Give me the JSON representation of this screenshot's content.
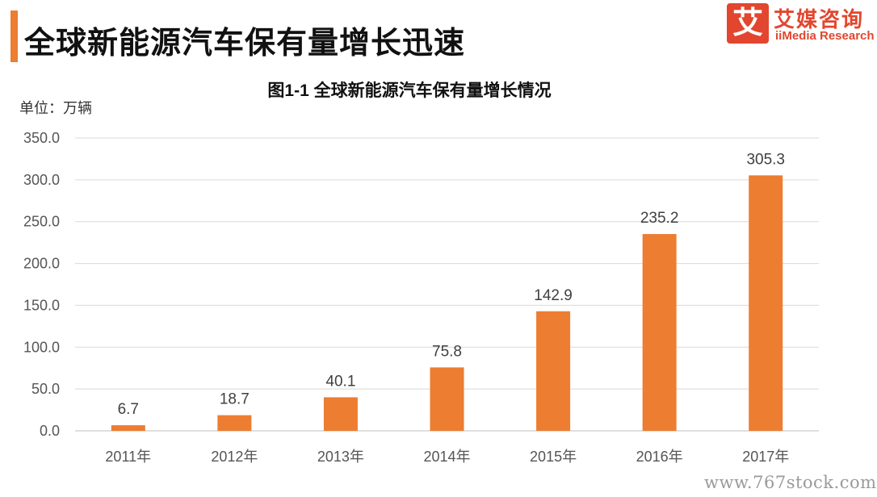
{
  "header": {
    "title": "全球新能源汽车保有量增长迅速",
    "accent_color": "#ED7D31"
  },
  "brand": {
    "mark": "艾",
    "name_cn": "艾媒咨询",
    "name_en": "iiMedia Research",
    "color": "#E2462E"
  },
  "watermark": "www.767stock.com",
  "chart_data": {
    "type": "bar",
    "title": "图1-1 全球新能源汽车保有量增长情况",
    "unit_label": "单位：万辆",
    "categories": [
      "2011年",
      "2012年",
      "2013年",
      "2014年",
      "2015年",
      "2016年",
      "2017年"
    ],
    "values": [
      6.7,
      18.7,
      40.1,
      75.8,
      142.9,
      235.2,
      305.3
    ],
    "data_labels": [
      "6.7",
      "18.7",
      "40.1",
      "75.8",
      "142.9",
      "235.2",
      "305.3"
    ],
    "ylim": [
      0,
      350
    ],
    "yticks": [
      0,
      50,
      100,
      150,
      200,
      250,
      300,
      350
    ],
    "ytick_labels": [
      "0.0",
      "50.0",
      "100.0",
      "150.0",
      "200.0",
      "250.0",
      "300.0",
      "350.0"
    ],
    "bar_color": "#ED7D31",
    "grid": true,
    "legend": "none"
  }
}
